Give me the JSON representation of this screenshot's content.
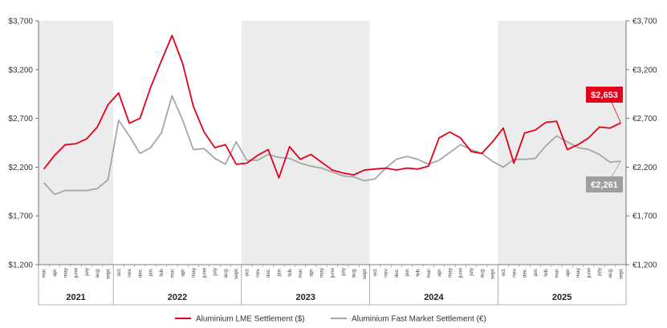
{
  "chart_data": {
    "type": "line",
    "y_left": {
      "ylim": [
        1200,
        3700
      ],
      "ticks": [
        1200,
        1700,
        2200,
        2700,
        3200,
        3700
      ],
      "tick_labels": [
        "$1,200",
        "$1,700",
        "$2,200",
        "$2,700",
        "$3,200",
        "$3,700"
      ]
    },
    "y_right": {
      "ylim": [
        1200,
        3700
      ],
      "ticks": [
        1200,
        1700,
        2200,
        2700,
        3200,
        3700
      ],
      "tick_labels": [
        "€1,200",
        "€1,700",
        "€2,200",
        "€2,700",
        "€3,200",
        "€3,700"
      ]
    },
    "months": [
      "mar.",
      "apr.",
      "may",
      "june",
      "july",
      "aug.",
      "sept.",
      "oct.",
      "nov.",
      "dec.",
      "jan.",
      "feb.",
      "mar.",
      "apr.",
      "may",
      "june",
      "july",
      "aug.",
      "sept.",
      "oct.",
      "nov.",
      "dec.",
      "jan.",
      "feb.",
      "mar.",
      "apr.",
      "may",
      "june",
      "july",
      "aug.",
      "sept.",
      "oct.",
      "nov.",
      "dec.",
      "jan.",
      "feb.",
      "mar.",
      "apr.",
      "may",
      "june",
      "july",
      "aug.",
      "sept.",
      "oct.",
      "nov.",
      "dec.",
      "jan.",
      "feb.",
      "mar.",
      "apr.",
      "may",
      "june",
      "july",
      "aug.",
      "sept."
    ],
    "years": [
      {
        "label": "2021",
        "start": 0,
        "end": 6,
        "shaded": true
      },
      {
        "label": "2022",
        "start": 7,
        "end": 18,
        "shaded": false
      },
      {
        "label": "2023",
        "start": 19,
        "end": 30,
        "shaded": true
      },
      {
        "label": "2024",
        "start": 31,
        "end": 42,
        "shaded": false
      },
      {
        "label": "2025",
        "start": 43,
        "end": 54,
        "shaded": true
      }
    ],
    "series": [
      {
        "name": "Aluminium LME Settlement ($)",
        "color": "#e2001a",
        "axis": "left",
        "values": [
          2180,
          2320,
          2430,
          2440,
          2490,
          2610,
          2840,
          2960,
          2650,
          2700,
          3020,
          3290,
          3550,
          3260,
          2820,
          2560,
          2400,
          2430,
          2230,
          2240,
          2320,
          2380,
          2090,
          2410,
          2280,
          2330,
          2250,
          2170,
          2140,
          2120,
          2170,
          2180,
          2190,
          2170,
          2190,
          2180,
          2210,
          2500,
          2560,
          2500,
          2360,
          2340,
          2460,
          2600,
          2240,
          2550,
          2580,
          2660,
          2670,
          2380,
          2430,
          2500,
          2610,
          2600,
          2653
        ]
      },
      {
        "name": "Aluminium Fast Market Settlement (€)",
        "color": "#a6a6a6",
        "axis": "right",
        "values": [
          2040,
          1920,
          1960,
          1960,
          1960,
          1980,
          2070,
          2680,
          2520,
          2340,
          2400,
          2550,
          2930,
          2680,
          2380,
          2390,
          2290,
          2230,
          2460,
          2270,
          2270,
          2330,
          2300,
          2290,
          2240,
          2210,
          2190,
          2150,
          2110,
          2100,
          2060,
          2080,
          2190,
          2280,
          2310,
          2280,
          2230,
          2270,
          2350,
          2430,
          2380,
          2340,
          2260,
          2200,
          2280,
          2280,
          2290,
          2420,
          2520,
          2460,
          2400,
          2380,
          2330,
          2250,
          2261
        ]
      }
    ],
    "callouts": [
      {
        "label": "$2,653",
        "series": 0,
        "color": "#e2001a"
      },
      {
        "label": "€2,261",
        "series": 1,
        "color": "#9e9e9e"
      }
    ],
    "legend_placement": "bottom-center"
  }
}
